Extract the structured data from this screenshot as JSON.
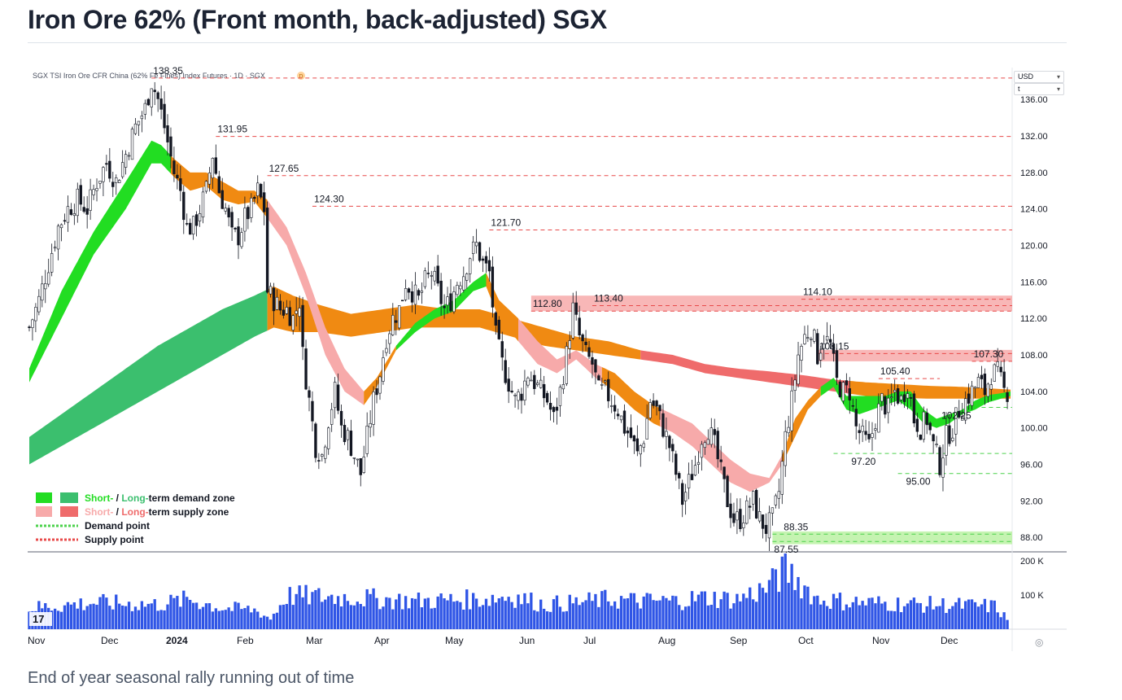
{
  "page": {
    "title": "Iron Ore 62% (Front month, back-adjusted) SGX",
    "caption": "End of year seasonal rally running out of time"
  },
  "toolbar": {
    "currency": "USD",
    "unit": "t",
    "settings_icon": "clock-icon"
  },
  "colors": {
    "supply_line": "#e84a4a",
    "demand_line": "#4cd24c",
    "short_demand": "#22dd22",
    "long_demand": "#3bbf6e",
    "short_supply": "#f7aaaa",
    "long_supply": "#ef6b6b",
    "crossover": "#f08a12",
    "volume": "#2f55e6",
    "candle_up": "#ffffff",
    "candle_down": "#131722"
  },
  "chart_data": {
    "type": "candlestick",
    "title": "SGX TSI Iron Ore CFR China (62% Fe Fines) Index Futures · 1D · SGX",
    "ylim": [
      86.5,
      139.5
    ],
    "y_ticks": [
      "136.00",
      "132.00",
      "128.00",
      "124.00",
      "120.00",
      "116.00",
      "112.00",
      "108.00",
      "104.00",
      "100.00",
      "96.00",
      "92.00",
      "88.00"
    ],
    "x_ticks": [
      "Nov",
      "Dec",
      "2024",
      "Feb",
      "Mar",
      "Apr",
      "May",
      "Jun",
      "Jul",
      "Aug",
      "Sep",
      "Oct",
      "Nov",
      "Dec"
    ],
    "volume_ticks": [
      "200 K",
      "100 K"
    ],
    "close_path": [
      [
        0,
        111
      ],
      [
        3,
        114
      ],
      [
        6,
        118
      ],
      [
        9,
        122
      ],
      [
        12,
        124
      ],
      [
        15,
        125
      ],
      [
        18,
        124
      ],
      [
        21,
        127
      ],
      [
        24,
        129
      ],
      [
        27,
        127
      ],
      [
        30,
        130
      ],
      [
        33,
        133
      ],
      [
        36,
        135
      ],
      [
        38,
        138
      ],
      [
        40,
        136
      ],
      [
        42,
        133
      ],
      [
        45,
        128
      ],
      [
        47,
        126
      ],
      [
        49,
        122
      ],
      [
        51,
        122
      ],
      [
        53,
        124
      ],
      [
        55,
        126
      ],
      [
        57,
        130
      ],
      [
        59,
        126
      ],
      [
        61,
        124
      ],
      [
        63,
        121
      ],
      [
        65,
        121
      ],
      [
        67,
        123
      ],
      [
        69,
        124
      ],
      [
        71,
        126
      ],
      [
        73,
        124
      ],
      [
        74,
        115
      ],
      [
        76,
        114
      ],
      [
        78,
        113
      ],
      [
        80,
        113
      ],
      [
        82,
        112
      ],
      [
        84,
        114
      ],
      [
        85,
        108
      ],
      [
        87,
        103
      ],
      [
        89,
        98
      ],
      [
        91,
        97
      ],
      [
        93,
        101
      ],
      [
        95,
        104
      ],
      [
        97,
        100
      ],
      [
        99,
        99
      ],
      [
        101,
        97
      ],
      [
        103,
        95
      ],
      [
        105,
        99
      ],
      [
        107,
        103
      ],
      [
        109,
        106
      ],
      [
        111,
        110
      ],
      [
        113,
        112
      ],
      [
        115,
        113
      ],
      [
        117,
        116
      ],
      [
        119,
        115
      ],
      [
        121,
        114
      ],
      [
        123,
        116
      ],
      [
        125,
        117
      ],
      [
        127,
        115
      ],
      [
        129,
        113
      ],
      [
        131,
        114
      ],
      [
        133,
        116
      ],
      [
        135,
        117
      ],
      [
        137,
        119
      ],
      [
        139,
        120
      ],
      [
        141,
        118
      ],
      [
        143,
        117
      ],
      [
        145,
        110
      ],
      [
        147,
        107
      ],
      [
        149,
        105
      ],
      [
        151,
        103
      ],
      [
        153,
        104
      ],
      [
        155,
        106
      ],
      [
        157,
        105
      ],
      [
        159,
        104
      ],
      [
        161,
        103
      ],
      [
        163,
        101
      ],
      [
        165,
        104
      ],
      [
        167,
        108
      ],
      [
        169,
        113
      ],
      [
        171,
        110
      ],
      [
        173,
        108
      ],
      [
        175,
        107
      ],
      [
        177,
        104
      ],
      [
        179,
        104
      ],
      [
        181,
        103
      ],
      [
        183,
        102
      ],
      [
        185,
        100
      ],
      [
        187,
        99
      ],
      [
        189,
        97
      ],
      [
        191,
        99
      ],
      [
        193,
        103
      ],
      [
        195,
        102
      ],
      [
        197,
        100
      ],
      [
        199,
        98
      ],
      [
        201,
        95
      ],
      [
        203,
        92
      ],
      [
        205,
        94
      ],
      [
        207,
        96
      ],
      [
        209,
        99
      ],
      [
        211,
        100
      ],
      [
        213,
        98
      ],
      [
        215,
        95
      ],
      [
        217,
        92
      ],
      [
        219,
        90
      ],
      [
        221,
        90
      ],
      [
        223,
        91
      ],
      [
        225,
        92
      ],
      [
        227,
        90
      ],
      [
        229,
        89
      ],
      [
        231,
        90
      ],
      [
        233,
        93
      ],
      [
        235,
        99
      ],
      [
        237,
        103
      ],
      [
        239,
        108
      ],
      [
        241,
        110
      ],
      [
        243,
        111
      ],
      [
        245,
        108
      ],
      [
        247,
        110
      ],
      [
        249,
        109
      ],
      [
        251,
        105
      ],
      [
        253,
        104
      ],
      [
        255,
        104
      ],
      [
        257,
        100
      ],
      [
        259,
        99
      ],
      [
        261,
        98
      ],
      [
        263,
        101
      ],
      [
        265,
        103
      ],
      [
        267,
        102
      ],
      [
        269,
        104
      ],
      [
        271,
        103
      ],
      [
        273,
        105
      ],
      [
        275,
        101
      ],
      [
        277,
        100
      ],
      [
        279,
        101
      ],
      [
        281,
        98
      ],
      [
        283,
        96
      ],
      [
        285,
        99
      ],
      [
        287,
        100
      ],
      [
        289,
        102
      ],
      [
        291,
        103
      ],
      [
        293,
        104
      ],
      [
        295,
        105
      ],
      [
        297,
        104
      ],
      [
        299,
        106
      ],
      [
        301,
        106
      ],
      [
        303,
        104
      ],
      [
        305,
        104
      ]
    ],
    "short_term_band": [
      [
        0,
        105,
        106.5
      ],
      [
        10,
        112,
        115
      ],
      [
        20,
        119,
        121.5
      ],
      [
        30,
        124,
        127
      ],
      [
        38,
        129,
        131.5
      ],
      [
        41,
        129,
        131
      ],
      [
        45,
        127.5,
        129.5
      ],
      [
        50,
        126,
        128
      ],
      [
        55,
        126.5,
        128
      ],
      [
        60,
        125,
        127
      ],
      [
        65,
        124.5,
        126
      ],
      [
        70,
        124.8,
        126
      ],
      [
        74,
        123,
        125
      ],
      [
        80,
        120,
        122
      ],
      [
        86,
        114.5,
        117
      ],
      [
        92,
        108,
        111
      ],
      [
        98,
        104,
        106.5
      ],
      [
        104,
        102.5,
        104
      ],
      [
        108,
        104.5,
        105.5
      ],
      [
        114,
        108.5,
        109
      ],
      [
        120,
        110.5,
        111.5
      ],
      [
        126,
        112,
        113
      ],
      [
        132,
        112.8,
        114
      ],
      [
        138,
        115,
        116
      ],
      [
        142,
        115.5,
        117
      ],
      [
        146,
        112,
        114
      ],
      [
        152,
        109.5,
        112
      ],
      [
        158,
        107,
        109.5
      ],
      [
        164,
        106,
        107.5
      ],
      [
        170,
        107.5,
        108.5
      ],
      [
        176,
        105.5,
        107
      ],
      [
        182,
        104,
        106
      ],
      [
        188,
        102,
        104
      ],
      [
        194,
        100.5,
        102.5
      ],
      [
        200,
        99.5,
        101.5
      ],
      [
        206,
        98,
        100.5
      ],
      [
        212,
        96,
        98.5
      ],
      [
        218,
        94,
        96.5
      ],
      [
        224,
        93,
        95
      ],
      [
        230,
        94,
        94.5
      ],
      [
        234,
        96,
        97
      ],
      [
        238,
        99,
        101
      ],
      [
        242,
        102,
        103
      ],
      [
        246,
        103.5,
        104.5
      ],
      [
        250,
        104.5,
        105.5
      ],
      [
        254,
        102,
        103.5
      ],
      [
        258,
        101.5,
        103.5
      ],
      [
        262,
        102,
        103.5
      ],
      [
        266,
        102.5,
        103.5
      ],
      [
        270,
        103,
        104
      ],
      [
        274,
        102,
        104
      ],
      [
        278,
        100.5,
        102
      ],
      [
        282,
        100,
        101
      ],
      [
        286,
        100.5,
        101.5
      ],
      [
        290,
        101.5,
        102
      ],
      [
        294,
        102,
        103
      ],
      [
        298,
        102.8,
        103.6
      ],
      [
        302,
        103.2,
        103.8
      ],
      [
        305,
        103.5,
        104
      ]
    ],
    "long_term_band": [
      [
        0,
        96,
        99
      ],
      [
        20,
        100,
        104
      ],
      [
        40,
        104,
        109
      ],
      [
        60,
        108,
        113
      ],
      [
        70,
        110,
        114.5
      ],
      [
        76,
        111,
        115.5
      ],
      [
        82,
        110.5,
        114.5
      ],
      [
        90,
        110.5,
        113.5
      ],
      [
        100,
        110,
        112.5
      ],
      [
        110,
        110.5,
        113
      ],
      [
        120,
        111,
        113.5
      ],
      [
        130,
        111,
        113
      ],
      [
        140,
        111,
        113
      ],
      [
        150,
        110,
        112
      ],
      [
        160,
        109,
        111
      ],
      [
        170,
        108.5,
        110
      ],
      [
        180,
        108,
        109.5
      ],
      [
        190,
        107.5,
        108.5
      ],
      [
        200,
        107,
        108
      ],
      [
        210,
        106,
        107
      ],
      [
        220,
        105.5,
        106.5
      ],
      [
        230,
        105,
        106.2
      ],
      [
        240,
        104.5,
        105.8
      ],
      [
        250,
        104,
        105.3
      ],
      [
        260,
        103.5,
        105
      ],
      [
        270,
        103.3,
        104.8
      ],
      [
        280,
        103.2,
        104.6
      ],
      [
        290,
        103.2,
        104.5
      ],
      [
        300,
        103.2,
        104.3
      ],
      [
        305,
        103.2,
        104.2
      ]
    ],
    "supply_points": [
      138.35,
      131.95,
      127.65,
      124.3,
      121.7,
      113.4,
      112.8,
      114.1,
      108.15,
      107.3,
      105.4
    ],
    "demand_points": [
      102.25,
      97.2,
      95.0,
      88.35,
      87.55
    ],
    "supply_zones": [
      {
        "from": 112.8,
        "to": 114.1
      },
      {
        "from": 107.3,
        "to": 108.15
      }
    ],
    "demand_zone": {
      "from": 87.55,
      "to": 88.35
    },
    "level_labels": [
      {
        "text": "138.35",
        "x": 38,
        "y": 138.35
      },
      {
        "text": "131.95",
        "x": 58,
        "y": 131.95
      },
      {
        "text": "127.65",
        "x": 74,
        "y": 127.65
      },
      {
        "text": "124.30",
        "x": 88,
        "y": 124.3
      },
      {
        "text": "121.70",
        "x": 143,
        "y": 121.7
      },
      {
        "text": "112.80",
        "x": 156,
        "y": 112.8
      },
      {
        "text": "113.40",
        "x": 175,
        "y": 113.4
      },
      {
        "text": "114.10",
        "x": 240,
        "y": 114.1
      },
      {
        "text": "108.15",
        "x": 245,
        "y": 108.15
      },
      {
        "text": "107.30",
        "x": 293,
        "y": 107.3
      },
      {
        "text": "105.40",
        "x": 264,
        "y": 105.4
      },
      {
        "text": "102.25",
        "x": 283,
        "y": 102.25
      },
      {
        "text": "97.20",
        "x": 255,
        "y": 97.2
      },
      {
        "text": "95.00",
        "x": 272,
        "y": 95.0
      },
      {
        "text": "88.35",
        "x": 234,
        "y": 88.35
      },
      {
        "text": "87.55",
        "x": 231,
        "y": 87.55
      }
    ],
    "legend": [
      {
        "swatches": [
          "#22dd22",
          "#3bbf6e"
        ],
        "parts": [
          {
            "text": "Short-",
            "color": "#22dd22"
          },
          {
            "text": " / ",
            "color": "#131722"
          },
          {
            "text": "Long-",
            "color": "#3bbf6e"
          },
          {
            "text": "term demand zone",
            "color": "#131722"
          }
        ]
      },
      {
        "swatches": [
          "#f7aaaa",
          "#ef6b6b"
        ],
        "parts": [
          {
            "text": "Short-",
            "color": "#f7aaaa"
          },
          {
            "text": " / ",
            "color": "#131722"
          },
          {
            "text": "Long-",
            "color": "#ef6b6b"
          },
          {
            "text": "term supply zone",
            "color": "#131722"
          }
        ]
      },
      {
        "swatches": [
          "dotted-green"
        ],
        "parts": [
          {
            "text": "Demand point",
            "color": "#131722"
          }
        ]
      },
      {
        "swatches": [
          "dotted-red"
        ],
        "parts": [
          {
            "text": "Supply point",
            "color": "#131722"
          }
        ]
      }
    ],
    "volume_max": 215,
    "volume_profile": [
      [
        0,
        60
      ],
      [
        20,
        75
      ],
      [
        40,
        70
      ],
      [
        50,
        85
      ],
      [
        60,
        60
      ],
      [
        70,
        55
      ],
      [
        75,
        30
      ],
      [
        80,
        95
      ],
      [
        100,
        90
      ],
      [
        120,
        80
      ],
      [
        140,
        85
      ],
      [
        150,
        95
      ],
      [
        160,
        70
      ],
      [
        170,
        75
      ],
      [
        180,
        85
      ],
      [
        190,
        80
      ],
      [
        200,
        80
      ],
      [
        210,
        90
      ],
      [
        220,
        85
      ],
      [
        230,
        120
      ],
      [
        235,
        170
      ],
      [
        240,
        130
      ],
      [
        245,
        85
      ],
      [
        260,
        75
      ],
      [
        280,
        70
      ],
      [
        300,
        65
      ],
      [
        305,
        20
      ]
    ]
  }
}
